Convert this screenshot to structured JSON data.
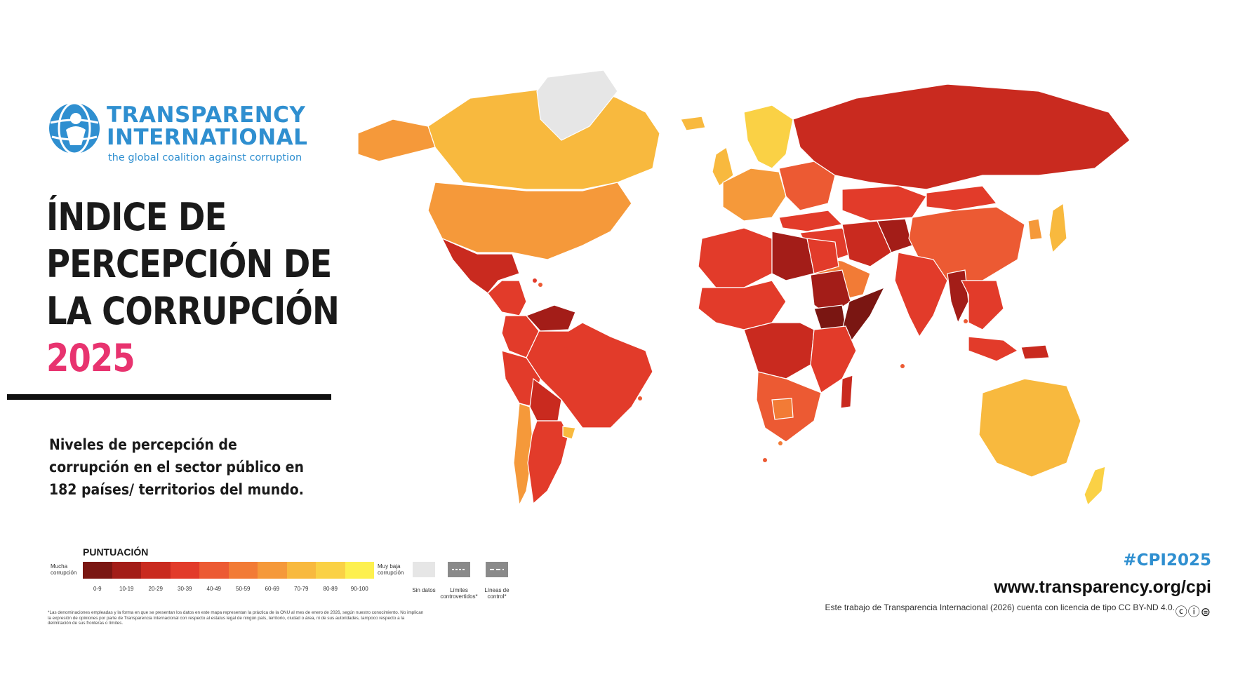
{
  "logo": {
    "line1": "TRANSPARENCY",
    "line2": "INTERNATIONAL",
    "tagline": "the global coalition against corruption",
    "brand_color": "#2f8fd0"
  },
  "title": {
    "line1": "ÍNDICE DE",
    "line2": "PERCEPCIÓN DE",
    "line3": "LA CORRUPCIÓN",
    "year": "2025",
    "year_color": "#e8336f"
  },
  "subtitle": "Niveles de percepción de corrupción en el sector público en 182 países/ territorios del mundo.",
  "legend": {
    "title": "PUNTUACIÓN",
    "low_end": "Mucha corrupción",
    "high_end": "Muy baja corrupción",
    "bins": [
      {
        "label": "0-9",
        "color": "#7a1612"
      },
      {
        "label": "10-19",
        "color": "#a31d18"
      },
      {
        "label": "20-29",
        "color": "#c92a1f"
      },
      {
        "label": "30-39",
        "color": "#e23b2a"
      },
      {
        "label": "40-49",
        "color": "#ec5a33"
      },
      {
        "label": "50-59",
        "color": "#f27b36"
      },
      {
        "label": "60-69",
        "color": "#f5993a"
      },
      {
        "label": "70-79",
        "color": "#f8b93e"
      },
      {
        "label": "80-89",
        "color": "#fad145"
      },
      {
        "label": "90-100",
        "color": "#fdf04f"
      }
    ],
    "no_data": "Sin datos",
    "no_data_color": "#e6e6e6",
    "disputed": "Límites controvertidos*",
    "control": "Líneas de control*"
  },
  "footnote": "*Las denominaciones empleadas y la forma en que se presentan los datos en este mapa representan la práctica de la ONU al mes de enero de 2026, según nuestro conocimiento. No implican la expresión de opiniones por parte de Transparencia Internacional con respecto al estatus legal de ningún país, territorio, ciudad o área, ni de sus autoridades, tampoco respecto a la delimitación de sus fronteras o límites.",
  "hashtag": "#CPI2025",
  "website": "www.transparency.org/cpi",
  "license": "Este trabajo de Transparencia Internacional (2026) cuenta con licencia de tipo CC BY-ND 4.0.",
  "map": {
    "regions": [
      {
        "name": "canada",
        "bin": "70-79"
      },
      {
        "name": "alaska",
        "bin": "60-69"
      },
      {
        "name": "usa",
        "bin": "60-69"
      },
      {
        "name": "mexico",
        "bin": "20-29"
      },
      {
        "name": "central-america",
        "bin": "30-39"
      },
      {
        "name": "greenland",
        "bin": "Sin datos"
      },
      {
        "name": "venezuela",
        "bin": "10-19"
      },
      {
        "name": "colombia",
        "bin": "30-39"
      },
      {
        "name": "brazil",
        "bin": "30-39"
      },
      {
        "name": "peru",
        "bin": "30-39"
      },
      {
        "name": "bolivia",
        "bin": "20-29"
      },
      {
        "name": "chile",
        "bin": "60-69"
      },
      {
        "name": "argentina",
        "bin": "30-39"
      },
      {
        "name": "uruguay",
        "bin": "70-79"
      },
      {
        "name": "iceland",
        "bin": "70-79"
      },
      {
        "name": "scandinavia",
        "bin": "80-89"
      },
      {
        "name": "uk",
        "bin": "70-79"
      },
      {
        "name": "western-europe",
        "bin": "60-69"
      },
      {
        "name": "eastern-europe",
        "bin": "40-49"
      },
      {
        "name": "russia",
        "bin": "20-29"
      },
      {
        "name": "turkey",
        "bin": "30-39"
      },
      {
        "name": "kazakhstan",
        "bin": "30-39"
      },
      {
        "name": "middle-east",
        "bin": "30-39"
      },
      {
        "name": "saudi-arabia",
        "bin": "50-59"
      },
      {
        "name": "iran",
        "bin": "20-29"
      },
      {
        "name": "afghanistan",
        "bin": "10-19"
      },
      {
        "name": "china",
        "bin": "40-49"
      },
      {
        "name": "mongolia",
        "bin": "30-39"
      },
      {
        "name": "india",
        "bin": "30-39"
      },
      {
        "name": "myanmar",
        "bin": "10-19"
      },
      {
        "name": "southeast-asia",
        "bin": "30-39"
      },
      {
        "name": "japan",
        "bin": "70-79"
      },
      {
        "name": "korea",
        "bin": "60-69"
      },
      {
        "name": "north-africa-west",
        "bin": "30-39"
      },
      {
        "name": "libya",
        "bin": "10-19"
      },
      {
        "name": "egypt",
        "bin": "30-39"
      },
      {
        "name": "sudan",
        "bin": "10-19"
      },
      {
        "name": "south-sudan",
        "bin": "0-9"
      },
      {
        "name": "somalia",
        "bin": "0-9"
      },
      {
        "name": "west-africa",
        "bin": "30-39"
      },
      {
        "name": "central-africa",
        "bin": "20-29"
      },
      {
        "name": "east-africa",
        "bin": "30-39"
      },
      {
        "name": "southern-africa",
        "bin": "40-49"
      },
      {
        "name": "botswana",
        "bin": "50-59"
      },
      {
        "name": "madagascar",
        "bin": "20-29"
      },
      {
        "name": "indonesia",
        "bin": "30-39"
      },
      {
        "name": "papua",
        "bin": "20-29"
      },
      {
        "name": "australia",
        "bin": "70-79"
      },
      {
        "name": "new-zealand",
        "bin": "80-89"
      }
    ]
  }
}
